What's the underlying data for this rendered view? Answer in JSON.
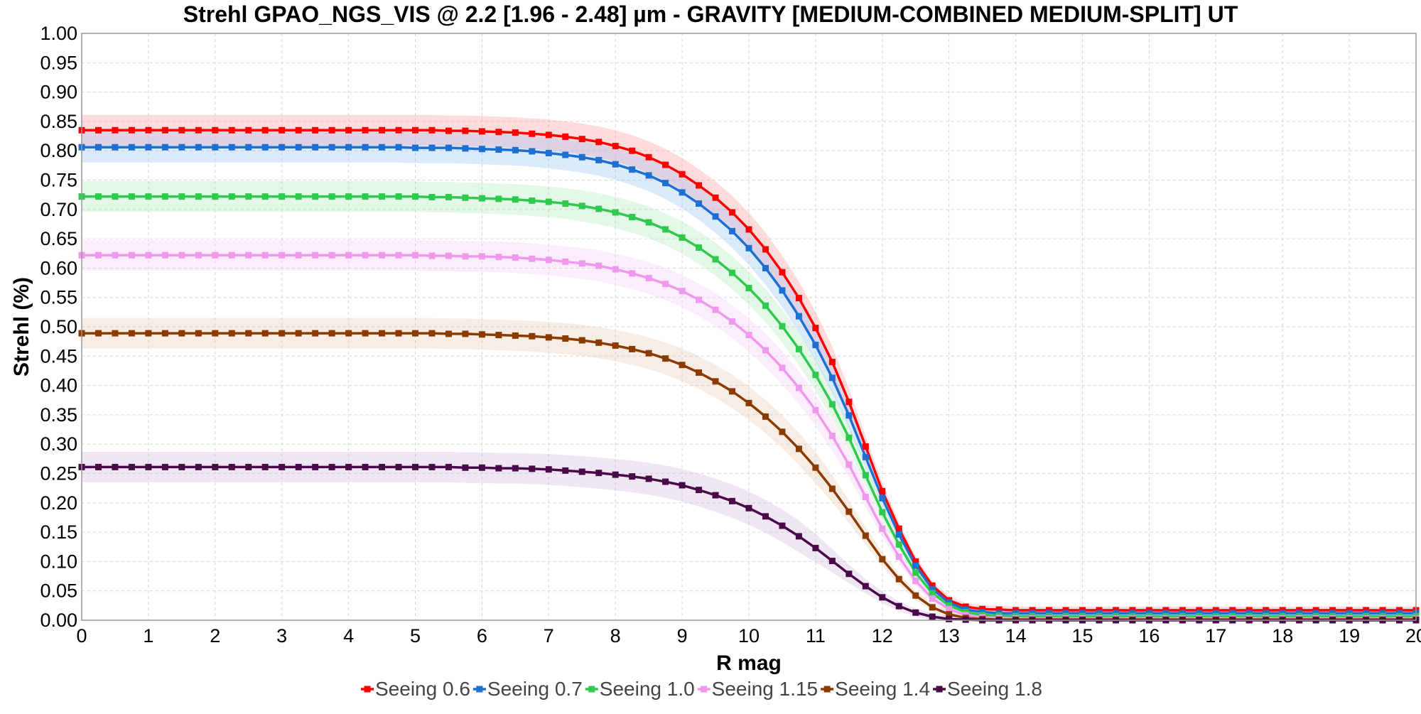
{
  "chart_data": {
    "type": "line",
    "title": "Strehl GPAO_NGS_VIS @ 2.2 [1.96 - 2.48] µm - GRAVITY [MEDIUM-COMBINED MEDIUM-SPLIT] UT",
    "xlabel": "R mag",
    "ylabel": "Strehl (%)",
    "xlim": [
      0,
      20
    ],
    "ylim": [
      0,
      1
    ],
    "x_ticks": [
      "0",
      "1",
      "2",
      "3",
      "4",
      "5",
      "6",
      "7",
      "8",
      "9",
      "10",
      "11",
      "12",
      "13",
      "14",
      "15",
      "16",
      "17",
      "18",
      "19",
      "20"
    ],
    "y_ticks": [
      "0.00",
      "0.05",
      "0.10",
      "0.15",
      "0.20",
      "0.25",
      "0.30",
      "0.35",
      "0.40",
      "0.45",
      "0.50",
      "0.55",
      "0.60",
      "0.65",
      "0.70",
      "0.75",
      "0.80",
      "0.85",
      "0.90",
      "0.95",
      "1.00"
    ],
    "grid": true,
    "legend_position": "bottom",
    "x": [
      0,
      0.25,
      0.5,
      0.75,
      1,
      1.25,
      1.5,
      1.75,
      2,
      2.25,
      2.5,
      2.75,
      3,
      3.25,
      3.5,
      3.75,
      4,
      4.25,
      4.5,
      4.75,
      5,
      5.25,
      5.5,
      5.75,
      6,
      6.25,
      6.5,
      6.75,
      7,
      7.25,
      7.5,
      7.75,
      8,
      8.25,
      8.5,
      8.75,
      9,
      9.25,
      9.5,
      9.75,
      10,
      10.25,
      10.5,
      10.75,
      11,
      11.25,
      11.5,
      11.75,
      12,
      12.25,
      12.5,
      12.75,
      13,
      13.25,
      13.5,
      13.75,
      14,
      14.25,
      14.5,
      14.75,
      15,
      15.25,
      15.5,
      15.75,
      16,
      16.25,
      16.5,
      16.75,
      17,
      17.25,
      17.5,
      17.75,
      18,
      18.25,
      18.5,
      18.75,
      19,
      19.25,
      19.5,
      19.75,
      20
    ],
    "series": [
      {
        "name": "Seeing 0.6",
        "color": "#ff0000",
        "band_color": "#ff8c8c",
        "values": [
          0.835,
          0.835,
          0.835,
          0.835,
          0.835,
          0.835,
          0.835,
          0.835,
          0.835,
          0.835,
          0.835,
          0.835,
          0.835,
          0.835,
          0.835,
          0.835,
          0.835,
          0.835,
          0.835,
          0.835,
          0.835,
          0.835,
          0.834,
          0.834,
          0.833,
          0.832,
          0.831,
          0.829,
          0.827,
          0.824,
          0.82,
          0.815,
          0.808,
          0.8,
          0.789,
          0.776,
          0.76,
          0.741,
          0.72,
          0.695,
          0.666,
          0.632,
          0.593,
          0.549,
          0.498,
          0.44,
          0.372,
          0.296,
          0.22,
          0.156,
          0.1,
          0.059,
          0.034,
          0.023,
          0.019,
          0.018,
          0.017,
          0.017,
          0.017,
          0.017,
          0.017,
          0.017,
          0.017,
          0.017,
          0.017,
          0.017,
          0.017,
          0.017,
          0.017,
          0.017,
          0.017,
          0.017,
          0.017,
          0.017,
          0.017,
          0.017,
          0.017,
          0.017,
          0.017,
          0.017,
          0.017
        ]
      },
      {
        "name": "Seeing 0.7",
        "color": "#1e6fd2",
        "band_color": "#8cbcf5",
        "values": [
          0.806,
          0.806,
          0.806,
          0.806,
          0.806,
          0.806,
          0.806,
          0.806,
          0.806,
          0.806,
          0.806,
          0.806,
          0.806,
          0.806,
          0.806,
          0.806,
          0.806,
          0.806,
          0.806,
          0.806,
          0.805,
          0.805,
          0.805,
          0.804,
          0.803,
          0.802,
          0.801,
          0.799,
          0.796,
          0.793,
          0.789,
          0.784,
          0.777,
          0.768,
          0.758,
          0.745,
          0.729,
          0.71,
          0.688,
          0.663,
          0.634,
          0.6,
          0.562,
          0.518,
          0.469,
          0.413,
          0.349,
          0.278,
          0.208,
          0.146,
          0.093,
          0.053,
          0.03,
          0.018,
          0.014,
          0.012,
          0.012,
          0.012,
          0.012,
          0.012,
          0.012,
          0.012,
          0.012,
          0.012,
          0.012,
          0.012,
          0.012,
          0.012,
          0.012,
          0.012,
          0.012,
          0.012,
          0.012,
          0.012,
          0.012,
          0.012,
          0.012,
          0.012,
          0.012,
          0.012,
          0.012
        ]
      },
      {
        "name": "Seeing 1.0",
        "color": "#2ec94e",
        "band_color": "#a6e8b4",
        "values": [
          0.722,
          0.722,
          0.722,
          0.722,
          0.722,
          0.722,
          0.722,
          0.722,
          0.722,
          0.722,
          0.722,
          0.722,
          0.722,
          0.722,
          0.722,
          0.722,
          0.722,
          0.722,
          0.722,
          0.722,
          0.722,
          0.721,
          0.721,
          0.72,
          0.719,
          0.718,
          0.717,
          0.715,
          0.713,
          0.71,
          0.706,
          0.701,
          0.695,
          0.687,
          0.678,
          0.666,
          0.652,
          0.635,
          0.615,
          0.592,
          0.566,
          0.536,
          0.501,
          0.462,
          0.418,
          0.368,
          0.311,
          0.247,
          0.184,
          0.129,
          0.081,
          0.046,
          0.025,
          0.014,
          0.009,
          0.008,
          0.007,
          0.007,
          0.007,
          0.007,
          0.007,
          0.007,
          0.007,
          0.007,
          0.007,
          0.007,
          0.007,
          0.007,
          0.007,
          0.007,
          0.007,
          0.007,
          0.007,
          0.007,
          0.007,
          0.007,
          0.007,
          0.007,
          0.007,
          0.007,
          0.007
        ]
      },
      {
        "name": "Seeing 1.15",
        "color": "#ee99ee",
        "band_color": "#f4c4f4",
        "values": [
          0.622,
          0.622,
          0.622,
          0.622,
          0.622,
          0.622,
          0.622,
          0.622,
          0.622,
          0.622,
          0.622,
          0.622,
          0.622,
          0.622,
          0.622,
          0.622,
          0.622,
          0.622,
          0.622,
          0.622,
          0.622,
          0.621,
          0.621,
          0.62,
          0.62,
          0.619,
          0.618,
          0.616,
          0.614,
          0.611,
          0.608,
          0.604,
          0.598,
          0.591,
          0.583,
          0.573,
          0.561,
          0.546,
          0.529,
          0.509,
          0.486,
          0.46,
          0.43,
          0.396,
          0.358,
          0.314,
          0.265,
          0.21,
          0.156,
          0.108,
          0.067,
          0.037,
          0.019,
          0.009,
          0.005,
          0.004,
          0.003,
          0.003,
          0.003,
          0.003,
          0.003,
          0.003,
          0.003,
          0.003,
          0.003,
          0.003,
          0.003,
          0.003,
          0.003,
          0.003,
          0.003,
          0.003,
          0.003,
          0.003,
          0.003,
          0.003,
          0.003,
          0.003,
          0.003,
          0.003,
          0.003
        ]
      },
      {
        "name": "Seeing 1.4",
        "color": "#8b3a00",
        "band_color": "#e8c2a4",
        "values": [
          0.489,
          0.489,
          0.489,
          0.489,
          0.489,
          0.489,
          0.489,
          0.489,
          0.489,
          0.489,
          0.489,
          0.489,
          0.489,
          0.489,
          0.489,
          0.489,
          0.489,
          0.489,
          0.489,
          0.489,
          0.489,
          0.489,
          0.488,
          0.488,
          0.487,
          0.486,
          0.485,
          0.484,
          0.482,
          0.48,
          0.477,
          0.473,
          0.468,
          0.462,
          0.455,
          0.446,
          0.435,
          0.422,
          0.407,
          0.39,
          0.37,
          0.347,
          0.321,
          0.292,
          0.26,
          0.224,
          0.185,
          0.144,
          0.104,
          0.07,
          0.042,
          0.022,
          0.01,
          0.004,
          0.002,
          0.001,
          0.001,
          0.001,
          0.001,
          0.001,
          0.001,
          0.001,
          0.001,
          0.001,
          0.001,
          0.001,
          0.001,
          0.001,
          0.001,
          0.001,
          0.001,
          0.001,
          0.001,
          0.001,
          0.001,
          0.001,
          0.001,
          0.001,
          0.001,
          0.001,
          0.001
        ]
      },
      {
        "name": "Seeing 1.8",
        "color": "#4a0a4a",
        "band_color": "#cdb0d9",
        "values": [
          0.261,
          0.261,
          0.261,
          0.261,
          0.261,
          0.261,
          0.261,
          0.261,
          0.261,
          0.261,
          0.261,
          0.261,
          0.261,
          0.261,
          0.261,
          0.261,
          0.261,
          0.261,
          0.261,
          0.261,
          0.261,
          0.261,
          0.261,
          0.26,
          0.26,
          0.259,
          0.259,
          0.258,
          0.257,
          0.255,
          0.253,
          0.251,
          0.248,
          0.245,
          0.241,
          0.236,
          0.23,
          0.222,
          0.213,
          0.203,
          0.191,
          0.177,
          0.161,
          0.143,
          0.123,
          0.101,
          0.079,
          0.058,
          0.039,
          0.024,
          0.013,
          0.006,
          0.002,
          0.001,
          0,
          0,
          0,
          0,
          0,
          0,
          0,
          0,
          0,
          0,
          0,
          0,
          0,
          0,
          0,
          0,
          0,
          0,
          0,
          0,
          0,
          0,
          0,
          0,
          0,
          0,
          0
        ]
      }
    ]
  }
}
